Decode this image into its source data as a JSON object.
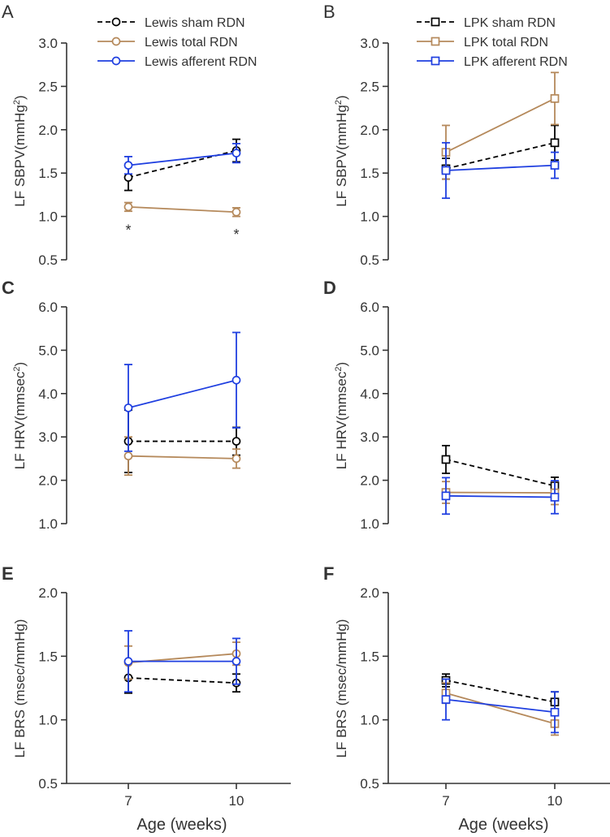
{
  "colors": {
    "sham": "#000000",
    "total": "#b5895b",
    "afferent": "#1f3fe0",
    "axis": "#333333"
  },
  "shared": {
    "xlabel": "Age (weeks)",
    "x_ticks": [
      7,
      10
    ]
  },
  "chart_data": [
    {
      "panel": "A",
      "type": "line",
      "ylabel": "LF SBPV(mmHg²)",
      "ylabel_main": "LF SBPV(mmHg",
      "ylabel_sup": "2",
      "ylabel_end": ")",
      "ylim": [
        0.5,
        3.0
      ],
      "yticks": [
        0.5,
        1.0,
        1.5,
        2.0,
        2.5,
        3.0
      ],
      "marker": "circle",
      "x": [
        7,
        10
      ],
      "series": [
        {
          "name": "Lewis sham RDN",
          "key": "sham",
          "values": [
            1.45,
            1.76
          ],
          "errors": [
            0.15,
            0.13
          ]
        },
        {
          "name": "Lewis total RDN",
          "key": "total",
          "values": [
            1.11,
            1.05
          ],
          "errors": [
            0.05,
            0.05
          ]
        },
        {
          "name": "Lewis afferent RDN",
          "key": "afferent",
          "values": [
            1.59,
            1.73
          ],
          "errors": [
            0.1,
            0.11
          ]
        }
      ],
      "annotations": [
        {
          "x": 7,
          "y": 0.88,
          "text": "*"
        },
        {
          "x": 10,
          "y": 0.83,
          "text": "*"
        }
      ]
    },
    {
      "panel": "B",
      "type": "line",
      "ylabel": "LF SBPV(mmHg²)",
      "ylabel_main": "LF SBPV(mmHg",
      "ylabel_sup": "2",
      "ylabel_end": ")",
      "ylim": [
        0.5,
        3.0
      ],
      "yticks": [
        0.5,
        1.0,
        1.5,
        2.0,
        2.5,
        3.0
      ],
      "marker": "square",
      "x": [
        7,
        10
      ],
      "series": [
        {
          "name": "LPK sham RDN",
          "key": "sham",
          "values": [
            1.55,
            1.85
          ],
          "errors": [
            0.12,
            0.2
          ]
        },
        {
          "name": "LPK total RDN",
          "key": "total",
          "values": [
            1.74,
            2.36
          ],
          "errors": [
            0.31,
            0.3
          ]
        },
        {
          "name": "LPK afferent RDN",
          "key": "afferent",
          "values": [
            1.53,
            1.59
          ],
          "errors": [
            0.32,
            0.15
          ]
        }
      ],
      "annotations": []
    },
    {
      "panel": "C",
      "type": "line",
      "ylabel": "LF HRV(mmsec²)",
      "ylabel_main": "LF HRV(mmsec",
      "ylabel_sup": "2",
      "ylabel_end": ")",
      "ylim": [
        1.0,
        6.0
      ],
      "yticks": [
        1.0,
        2.0,
        3.0,
        4.0,
        5.0,
        6.0
      ],
      "marker": "circle",
      "x": [
        7,
        10
      ],
      "series": [
        {
          "name": "Lewis sham RDN",
          "key": "sham",
          "values": [
            2.9,
            2.9
          ],
          "errors": [
            0.72,
            0.32
          ]
        },
        {
          "name": "Lewis total RDN",
          "key": "total",
          "values": [
            2.56,
            2.5
          ],
          "errors": [
            0.44,
            0.22
          ]
        },
        {
          "name": "Lewis afferent RDN",
          "key": "afferent",
          "values": [
            3.67,
            4.31
          ],
          "errors": [
            1.0,
            1.1
          ]
        }
      ],
      "annotations": []
    },
    {
      "panel": "D",
      "type": "line",
      "ylabel": "LF HRV(mmsec²)",
      "ylabel_main": "LF HRV(mmsec",
      "ylabel_sup": "2",
      "ylabel_end": ")",
      "ylim": [
        1.0,
        6.0
      ],
      "yticks": [
        1.0,
        2.0,
        3.0,
        4.0,
        5.0,
        6.0
      ],
      "marker": "square",
      "x": [
        7,
        10
      ],
      "series": [
        {
          "name": "LPK sham RDN",
          "key": "sham",
          "values": [
            2.48,
            1.87
          ],
          "errors": [
            0.32,
            0.2
          ]
        },
        {
          "name": "LPK total RDN",
          "key": "total",
          "values": [
            1.72,
            1.71
          ],
          "errors": [
            0.25,
            0.27
          ]
        },
        {
          "name": "LPK afferent RDN",
          "key": "afferent",
          "values": [
            1.64,
            1.61
          ],
          "errors": [
            0.42,
            0.38
          ]
        }
      ],
      "annotations": []
    },
    {
      "panel": "E",
      "type": "line",
      "ylabel": "LF BRS (msec/mmHg)",
      "ylabel_main": "LF BRS (msec/mmHg)",
      "ylabel_sup": "",
      "ylabel_end": "",
      "ylim": [
        0.5,
        2.0
      ],
      "yticks": [
        0.5,
        1.0,
        1.5,
        2.0
      ],
      "marker": "circle",
      "x": [
        7,
        10
      ],
      "series": [
        {
          "name": "Lewis sham RDN",
          "key": "sham",
          "values": [
            1.33,
            1.29
          ],
          "errors": [
            0.12,
            0.07
          ]
        },
        {
          "name": "Lewis total RDN",
          "key": "total",
          "values": [
            1.45,
            1.52
          ],
          "errors": [
            0.13,
            0.09
          ]
        },
        {
          "name": "Lewis afferent RDN",
          "key": "afferent",
          "values": [
            1.46,
            1.46
          ],
          "errors": [
            0.24,
            0.18
          ]
        }
      ],
      "annotations": []
    },
    {
      "panel": "F",
      "type": "line",
      "ylabel": "LF BRS (msec/mmHg)",
      "ylabel_main": "LF BRS (msec/mmHg)",
      "ylabel_sup": "",
      "ylabel_end": "",
      "ylim": [
        0.5,
        2.0
      ],
      "yticks": [
        0.5,
        1.0,
        1.5,
        2.0
      ],
      "marker": "square",
      "x": [
        7,
        10
      ],
      "series": [
        {
          "name": "LPK sham RDN",
          "key": "sham",
          "values": [
            1.31,
            1.14
          ],
          "errors": [
            0.05,
            0.08
          ]
        },
        {
          "name": "LPK total RDN",
          "key": "total",
          "values": [
            1.21,
            0.97
          ],
          "errors": [
            0.08,
            0.09
          ]
        },
        {
          "name": "LPK afferent RDN",
          "key": "afferent",
          "values": [
            1.16,
            1.06
          ],
          "errors": [
            0.16,
            0.16
          ]
        }
      ],
      "annotations": []
    }
  ]
}
